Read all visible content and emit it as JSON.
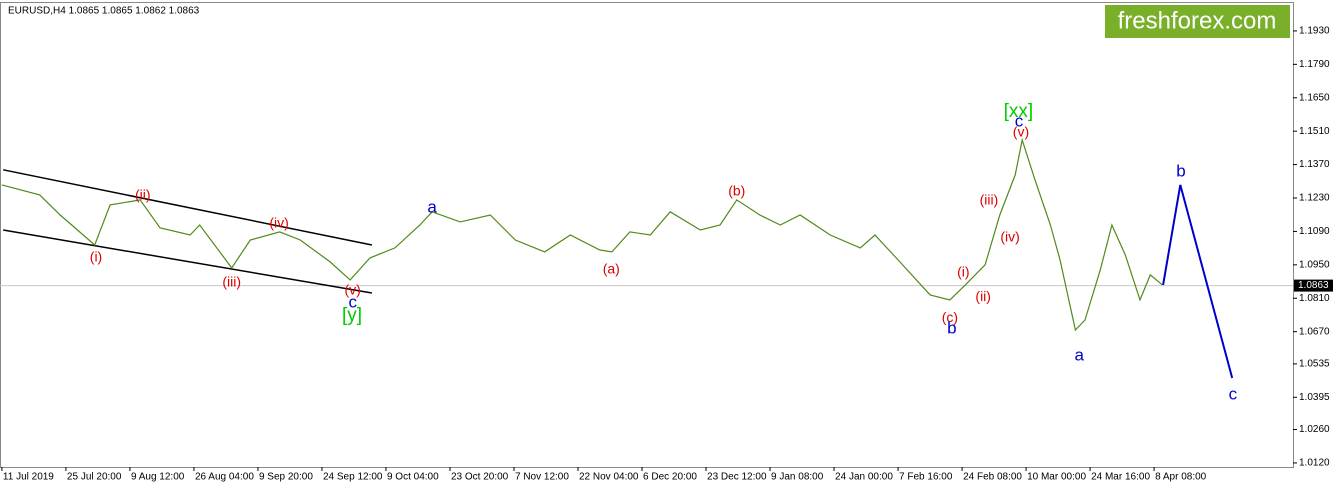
{
  "header": "EURUSD,H4  1.0865 1.0865 1.0862 1.0863",
  "logo": "freshforex.com",
  "chart_data": {
    "type": "line",
    "ylim": [
      1.0103,
      1.2047
    ],
    "xlim": [
      -0.03,
      20.17
    ],
    "yticks": [
      {
        "value": 1.012,
        "label": "1.0120"
      },
      {
        "value": 1.026,
        "label": "1.0260"
      },
      {
        "value": 1.0395,
        "label": "1.0395"
      },
      {
        "value": 1.0535,
        "label": "1.0535"
      },
      {
        "value": 1.067,
        "label": "1.0670"
      },
      {
        "value": 1.081,
        "label": "1.0810"
      },
      {
        "value": 1.095,
        "label": "1.0950"
      },
      {
        "value": 1.109,
        "label": "1.1090"
      },
      {
        "value": 1.123,
        "label": "1.1230"
      },
      {
        "value": 1.137,
        "label": "1.1370"
      },
      {
        "value": 1.151,
        "label": "1.1510"
      },
      {
        "value": 1.165,
        "label": "1.1650"
      },
      {
        "value": 1.179,
        "label": "1.1790"
      },
      {
        "value": 1.193,
        "label": "1.1930"
      }
    ],
    "xticks": [
      {
        "value": 0,
        "label": "11 Jul 2019"
      },
      {
        "value": 1,
        "label": "25 Jul 20:00"
      },
      {
        "value": 2,
        "label": "9 Aug 12:00"
      },
      {
        "value": 3,
        "label": "26 Aug 04:00"
      },
      {
        "value": 4,
        "label": "9 Sep 20:00"
      },
      {
        "value": 5,
        "label": "24 Sep 12:00"
      },
      {
        "value": 6,
        "label": "9 Oct 04:00"
      },
      {
        "value": 7,
        "label": "23 Oct 20:00"
      },
      {
        "value": 8,
        "label": "7 Nov 12:00"
      },
      {
        "value": 9,
        "label": "22 Nov 04:00"
      },
      {
        "value": 10,
        "label": "6 Dec 20:00"
      },
      {
        "value": 11,
        "label": "23 Dec 12:00"
      },
      {
        "value": 12,
        "label": "9 Jan 08:00"
      },
      {
        "value": 13,
        "label": "24 Jan 00:00"
      },
      {
        "value": 14,
        "label": "7 Feb 16:00"
      },
      {
        "value": 15,
        "label": "24 Feb 08:00"
      },
      {
        "value": 16,
        "label": "10 Mar 00:00"
      },
      {
        "value": 17,
        "label": "24 Mar 16:00"
      },
      {
        "value": 18,
        "label": "8 Apr 08:00"
      }
    ],
    "last_price": {
      "value": 1.0863,
      "label": "1.0863"
    },
    "series": [
      {
        "name": "EURUSD",
        "color": "#4f8a1a",
        "x": [
          0,
          0.59,
          0.91,
          1.45,
          1.69,
          2.16,
          2.47,
          2.94,
          3.09,
          3.59,
          3.88,
          4.34,
          4.66,
          5.13,
          5.44,
          5.75,
          6.14,
          6.53,
          6.72,
          7.16,
          7.63,
          8.02,
          8.48,
          8.88,
          9.34,
          9.53,
          9.81,
          10.13,
          10.44,
          10.91,
          11.22,
          11.48,
          11.84,
          12.16,
          12.47,
          12.94,
          13.41,
          13.64,
          14.03,
          14.5,
          14.81,
          15.05,
          15.36,
          15.59,
          15.83,
          15.94,
          16.14,
          16.38,
          16.53,
          16.77,
          16.92,
          17.16,
          17.34,
          17.55,
          17.78,
          17.94,
          18.13
        ],
        "values": [
          1.1285,
          1.1243,
          1.1159,
          1.1033,
          1.1201,
          1.1222,
          1.1105,
          1.1075,
          1.1117,
          1.0937,
          1.1054,
          1.1088,
          1.1054,
          1.0962,
          1.0887,
          1.0979,
          1.1021,
          1.1117,
          1.1172,
          1.113,
          1.1159,
          1.1054,
          1.1004,
          1.1075,
          1.1012,
          1.1004,
          1.1088,
          1.1075,
          1.1172,
          1.1096,
          1.1117,
          1.1222,
          1.1159,
          1.1117,
          1.1159,
          1.1075,
          1.1021,
          1.1075,
          1.0962,
          1.0824,
          1.0803,
          1.0866,
          1.095,
          1.1159,
          1.1327,
          1.1473,
          1.1306,
          1.1117,
          1.0971,
          1.0677,
          1.0719,
          1.0929,
          1.1117,
          1.0991,
          1.0803,
          1.0908,
          1.0866
        ]
      }
    ],
    "projection": {
      "color": "#0000cc",
      "x": [
        18.14,
        18.41,
        19.22
      ],
      "values": [
        1.0866,
        1.1285,
        1.0476
      ]
    },
    "channel": [
      {
        "color": "#000000",
        "x": [
          0.02,
          5.78
        ],
        "values": [
          1.1348,
          1.1033
        ]
      },
      {
        "color": "#000000",
        "x": [
          0.02,
          5.78
        ],
        "values": [
          1.1096,
          1.0832
        ]
      }
    ],
    "annotations": [
      {
        "text": "(i)",
        "color": "#dd0000",
        "x": 1.47,
        "y": 1.0979
      },
      {
        "text": "(ii)",
        "color": "#dd0000",
        "x": 2.2,
        "y": 1.1239
      },
      {
        "text": "(iii)",
        "color": "#dd0000",
        "x": 3.59,
        "y": 1.0874
      },
      {
        "text": "(iv)",
        "color": "#dd0000",
        "x": 4.33,
        "y": 1.1121
      },
      {
        "text": "(v)",
        "color": "#dd0000",
        "x": 5.48,
        "y": 1.0841
      },
      {
        "text": "c",
        "color": "#0000cc",
        "x": 5.48,
        "y": 1.079
      },
      {
        "text": "[y]",
        "color": "#00cc00",
        "x": 5.47,
        "y": 1.0736
      },
      {
        "text": "a",
        "color": "#0000cc",
        "x": 6.72,
        "y": 1.1188
      },
      {
        "text": "(a)",
        "color": "#dd0000",
        "x": 9.52,
        "y": 1.0929
      },
      {
        "text": "(b)",
        "color": "#dd0000",
        "x": 11.48,
        "y": 1.1255
      },
      {
        "text": "(c)",
        "color": "#dd0000",
        "x": 14.81,
        "y": 1.0727
      },
      {
        "text": "b",
        "color": "#0000cc",
        "x": 14.84,
        "y": 1.0681
      },
      {
        "text": "(i)",
        "color": "#dd0000",
        "x": 15.02,
        "y": 1.0916
      },
      {
        "text": "(ii)",
        "color": "#dd0000",
        "x": 15.33,
        "y": 1.0815
      },
      {
        "text": "(iii)",
        "color": "#dd0000",
        "x": 15.42,
        "y": 1.1218
      },
      {
        "text": "(iv)",
        "color": "#dd0000",
        "x": 15.75,
        "y": 1.1063
      },
      {
        "text": "(v)",
        "color": "#dd0000",
        "x": 15.92,
        "y": 1.1503
      },
      {
        "text": "c",
        "color": "#0000cc",
        "x": 15.89,
        "y": 1.1549
      },
      {
        "text": "[xx]",
        "color": "#00cc00",
        "x": 15.88,
        "y": 1.1591
      },
      {
        "text": "a",
        "color": "#0000cc",
        "x": 16.83,
        "y": 1.0568
      },
      {
        "text": "b",
        "color": "#0000cc",
        "x": 18.42,
        "y": 1.1339
      },
      {
        "text": "c",
        "color": "#0000cc",
        "x": 19.23,
        "y": 1.0405
      }
    ]
  }
}
